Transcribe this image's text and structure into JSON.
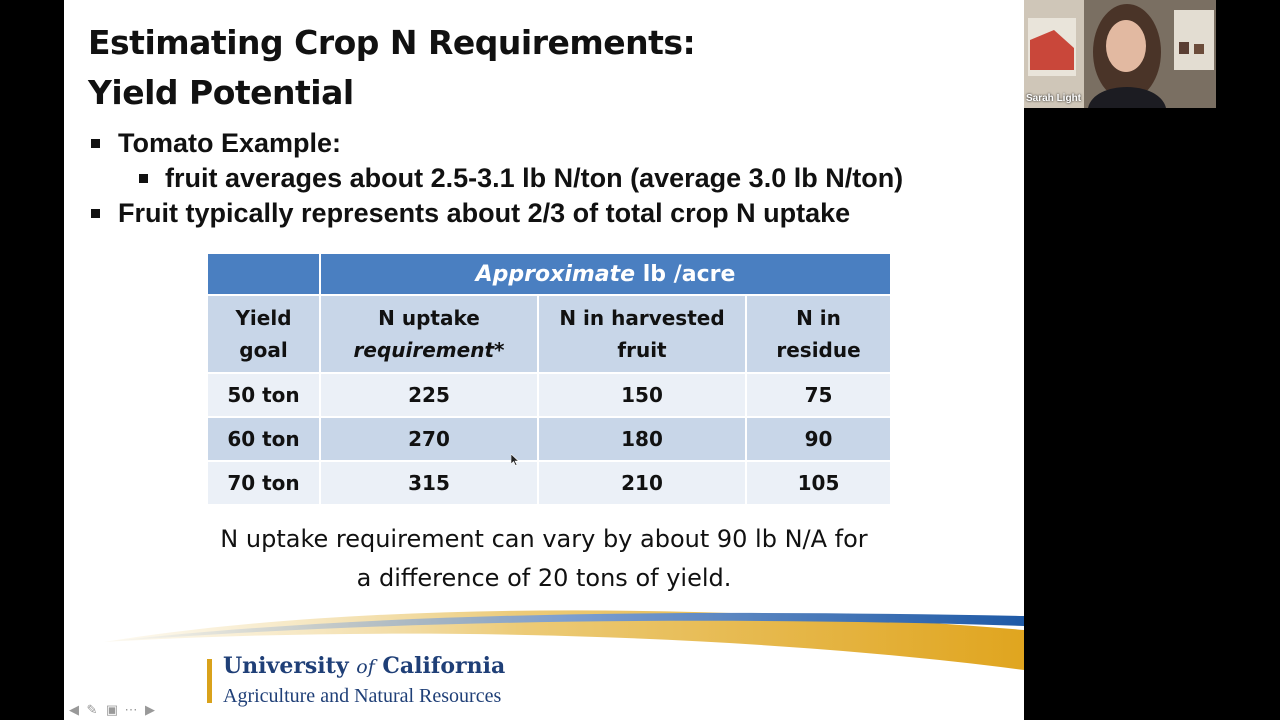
{
  "slide": {
    "title_line1": "Estimating Crop N Requirements:",
    "title_line2": "Yield Potential",
    "bullet1": "Tomato Example:",
    "sub_bullet1": "fruit averages about 2.5-3.1 lb N/ton (average 3.0 lb N/ton)",
    "bullet2": "Fruit typically represents about 2/3 of total crop N uptake",
    "table": {
      "header_italic": "Approximate",
      "header_rest": " lb /acre",
      "col1_line1": "Yield",
      "col1_line2": "goal",
      "col2_line1": "N uptake",
      "col2_line2": "requirement*",
      "col3_line1": "N in harvested",
      "col3_line2": "fruit",
      "col4_line1": "N in",
      "col4_line2": "residue",
      "rows": [
        {
          "yield": "50 ton",
          "uptake": "225",
          "fruit": "150",
          "residue": "75"
        },
        {
          "yield": "60 ton",
          "uptake": "270",
          "fruit": "180",
          "residue": "90"
        },
        {
          "yield": "70 ton",
          "uptake": "315",
          "fruit": "210",
          "residue": "105"
        }
      ]
    },
    "note_line1": "N uptake requirement can vary by about 90 lb N/A for",
    "note_line2": "a difference of 20 tons of yield.",
    "logo_line1_a": "University ",
    "logo_line1_of": "of",
    "logo_line1_b": " California",
    "logo_line2": "Agriculture and Natural Resources"
  },
  "video": {
    "participant_name": "Sarah Light"
  },
  "controls": {
    "prev_icon": "arrow-left-icon",
    "pen_icon": "pen-icon",
    "slides_icon": "slides-icon",
    "more_icon": "more-icon",
    "next_icon": "arrow-right-icon"
  },
  "colors": {
    "table_header": "#4a7fc1",
    "table_dark_row": "#c8d6e8",
    "table_light_row": "#ebf0f7",
    "logo_blue": "#1f3f77",
    "logo_gold": "#d9a21b"
  }
}
